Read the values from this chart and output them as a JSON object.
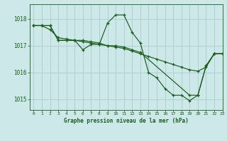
{
  "title": "Graphe pression niveau de la mer (hPa)",
  "background_color": "#cce8e8",
  "grid_color": "#aacccc",
  "line_color": "#1a5c1a",
  "ylabel_ticks": [
    1015,
    1016,
    1017,
    1018
  ],
  "xlim": [
    -0.5,
    23
  ],
  "ylim": [
    1014.6,
    1018.55
  ],
  "series": [
    {
      "x": [
        0,
        1,
        2,
        3,
        4,
        5,
        6,
        7,
        8,
        9,
        10,
        11,
        12,
        13,
        14,
        15,
        16,
        17,
        18,
        19,
        20,
        21,
        22,
        23
      ],
      "y": [
        1017.75,
        1017.75,
        1017.75,
        1017.2,
        1017.2,
        1017.2,
        1016.85,
        1017.05,
        1017.05,
        1017.85,
        1018.15,
        1018.15,
        1017.5,
        1017.1,
        1016.0,
        1015.8,
        1015.4,
        1015.15,
        1015.15,
        1014.95,
        1015.15,
        1016.25,
        1016.7,
        1016.7
      ]
    },
    {
      "x": [
        0,
        1,
        2,
        3,
        4,
        5,
        6,
        7,
        8,
        9,
        10,
        11,
        12,
        13,
        14,
        15,
        16,
        17,
        18,
        19,
        20,
        21,
        22,
        23
      ],
      "y": [
        1017.75,
        1017.75,
        1017.6,
        1017.3,
        1017.25,
        1017.2,
        1017.15,
        1017.1,
        1017.05,
        1017.0,
        1016.95,
        1016.9,
        1016.8,
        1016.7,
        1016.6,
        1016.5,
        1016.4,
        1016.3,
        1016.2,
        1016.1,
        1016.05,
        1016.2,
        1016.7,
        1016.7
      ]
    },
    {
      "x": [
        0,
        1,
        2,
        3,
        4,
        5,
        6,
        7,
        8,
        9,
        10,
        11,
        12,
        13,
        19,
        20,
        21,
        22,
        23
      ],
      "y": [
        1017.75,
        1017.75,
        1017.75,
        1017.2,
        1017.2,
        1017.2,
        1017.2,
        1017.15,
        1017.1,
        1017.0,
        1017.0,
        1016.95,
        1016.85,
        1016.75,
        1015.15,
        1015.15,
        1016.25,
        1016.7,
        1016.7
      ]
    }
  ],
  "figsize": [
    3.2,
    2.0
  ],
  "dpi": 100
}
